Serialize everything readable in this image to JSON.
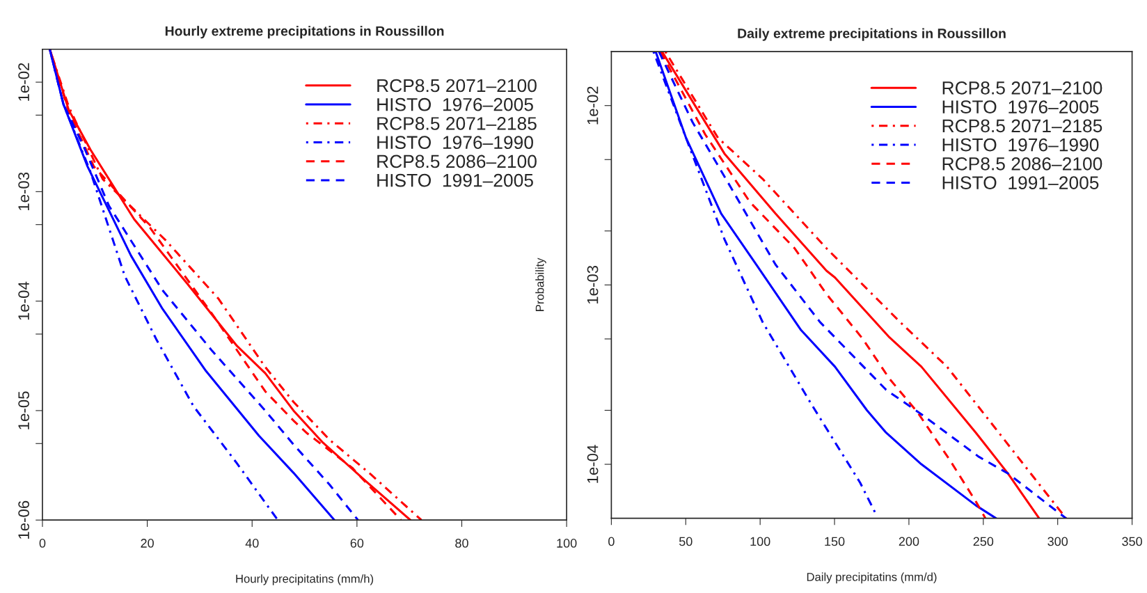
{
  "chart_data": [
    {
      "type": "line",
      "title": "Hourly extreme precipitations in Roussillon",
      "xlabel": "Hourly precipitatins (mm/h)",
      "xlim": [
        0,
        100
      ],
      "xticks": [
        0,
        20,
        40,
        60,
        80,
        100
      ],
      "ylim": [
        1e-06,
        0.02
      ],
      "log": "y",
      "grid": false,
      "legend": "top right",
      "yticks": [
        {
          "value": 0.01,
          "label": "1e-02"
        },
        {
          "value": 0.005,
          "label": null
        },
        {
          "value": 0.001,
          "label": "1e-03"
        },
        {
          "value": 0.0005,
          "label": null
        },
        {
          "value": 0.0001,
          "label": "1e-04"
        },
        {
          "value": 5e-05,
          "label": null
        },
        {
          "value": 1e-05,
          "label": "1e-05"
        },
        {
          "value": 5e-06,
          "label": null
        },
        {
          "value": 1e-06,
          "label": "1e-06"
        }
      ],
      "series": [
        {
          "name": "RCP8.5 2071–2100",
          "color": "#ff0000",
          "line_style": "solid",
          "x": [
            1.4,
            5,
            9.2,
            17.5,
            27.6,
            37.1,
            42.5,
            47.9,
            53.5,
            62,
            70.2
          ],
          "values": [
            0.02,
            0.0056,
            0.0024,
            0.00056,
            0.000145,
            3.9e-05,
            2.2e-05,
            1e-05,
            5.1e-06,
            2.2e-06,
            1e-06
          ]
        },
        {
          "name": "HISTO  1976–2005",
          "color": "#0000ff",
          "line_style": "solid",
          "x": [
            1.4,
            4,
            8.6,
            16.9,
            22.9,
            31.2,
            41.3,
            47.9,
            55.7
          ],
          "values": [
            0.02,
            0.0063,
            0.0017,
            0.00026,
            8.5e-05,
            2.3e-05,
            5.9e-06,
            2.7e-06,
            1e-06
          ]
        },
        {
          "name": "RCP8.5 2071–2185",
          "color": "#ff0000",
          "line_style": "dashdot",
          "x": [
            1.4,
            5,
            11.5,
            23.5,
            33.6,
            42.5,
            47.9,
            54.8,
            62.7,
            72.3
          ],
          "values": [
            0.02,
            0.006,
            0.0013,
            0.00036,
            0.000105,
            2.5e-05,
            1.2e-05,
            5.4e-06,
            2.6e-06,
            1e-06
          ]
        },
        {
          "name": "HISTO  1976–1990",
          "color": "#0000ff",
          "line_style": "dashdot",
          "x": [
            1.4,
            4,
            9.2,
            15.7,
            21.7,
            28.8,
            37.1,
            44.9
          ],
          "values": [
            0.02,
            0.0063,
            0.0015,
            0.00017,
            4.5e-05,
            1.1e-05,
            3.3e-06,
            1e-06
          ]
        },
        {
          "name": "RCP8.5 2086–2100",
          "color": "#ff0000",
          "line_style": "dashed",
          "x": [
            1.4,
            5,
            9.8,
            20.5,
            32.4,
            42.5,
            47.9,
            50.5,
            59.1,
            68.4
          ],
          "values": [
            0.02,
            0.0054,
            0.0017,
            0.00047,
            7.6e-05,
            1.5e-05,
            8.1e-06,
            6.2e-06,
            3e-06,
            1e-06
          ]
        },
        {
          "name": "HISTO  1991–2005",
          "color": "#0000ff",
          "line_style": "dashed",
          "x": [
            1.4,
            4,
            8,
            12.7,
            22.9,
            32.4,
            42.5,
            47.9,
            54.8,
            60.2
          ],
          "values": [
            0.02,
            0.0063,
            0.0025,
            0.00074,
            0.000126,
            3.5e-05,
            1e-05,
            4.9e-06,
            2.1e-06,
            1e-06
          ]
        }
      ]
    },
    {
      "type": "line",
      "title": "Daily extreme precipitations in Roussillon",
      "xlabel": "Daily precipitatins (mm/d)",
      "ylabel": "Probability",
      "xlim": [
        0,
        350
      ],
      "xticks": [
        0,
        50,
        100,
        150,
        200,
        250,
        300,
        350
      ],
      "ylim": [
        5e-05,
        0.02
      ],
      "log": "y",
      "grid": false,
      "legend": "top right",
      "yticks": [
        {
          "value": 0.01,
          "label": "1e-02"
        },
        {
          "value": 0.005,
          "label": null
        },
        {
          "value": 0.002,
          "label": null
        },
        {
          "value": 0.001,
          "label": "1e-03"
        },
        {
          "value": 0.0005,
          "label": null
        },
        {
          "value": 0.0002,
          "label": null
        },
        {
          "value": 0.0001,
          "label": "1e-04"
        }
      ],
      "series": [
        {
          "name": "RCP8.5 2071–2100",
          "color": "#ff0000",
          "line_style": "solid",
          "x": [
            34.1,
            76,
            110.3,
            144.6,
            150.3,
            186.9,
            208.4,
            245,
            266.5,
            287.5
          ],
          "values": [
            0.02,
            0.0054,
            0.0025,
            0.0012,
            0.0011,
            0.00051,
            0.00035,
            0.00015,
            8.9e-05,
            5e-05
          ]
        },
        {
          "name": "HISTO  1976–2005",
          "color": "#0000ff",
          "line_style": "solid",
          "x": [
            29.8,
            50.2,
            73.8,
            97.4,
            127.5,
            150.3,
            171.8,
            184.7,
            208.4,
            245,
            258.5
          ],
          "values": [
            0.02,
            0.0066,
            0.0025,
            0.0013,
            0.00056,
            0.00035,
            0.0002,
            0.00015,
            0.0001,
            5.9e-05,
            5e-05
          ]
        },
        {
          "name": "RCP8.5 2071–2185",
          "color": "#ff0000",
          "line_style": "dashdot",
          "x": [
            36.3,
            71.7,
            101.7,
            144.6,
            193.3,
            225.6,
            257.8,
            283.7,
            305.6
          ],
          "values": [
            0.02,
            0.0066,
            0.0039,
            0.0016,
            0.00063,
            0.00035,
            0.00016,
            8.5e-05,
            5e-05
          ]
        },
        {
          "name": "HISTO  1976–1990",
          "color": "#0000ff",
          "line_style": "dashdot",
          "x": [
            28.3,
            43.8,
            76,
            101.7,
            133.9,
            167.2,
            177.2
          ],
          "values": [
            0.02,
            0.0091,
            0.0018,
            0.00062,
            0.00022,
            7.9e-05,
            5.4e-05
          ]
        },
        {
          "name": "RCP8.5 2086–2100",
          "color": "#ff0000",
          "line_style": "dashed",
          "x": [
            33,
            63.1,
            93.1,
            123.2,
            144.6,
            169,
            186.9,
            205.8,
            227.7,
            245,
            251.4
          ],
          "values": [
            0.02,
            0.0069,
            0.0029,
            0.0016,
            0.00089,
            0.0005,
            0.0003,
            0.000195,
            0.000105,
            6.2e-05,
            5e-05
          ]
        },
        {
          "name": "HISTO  1991–2005",
          "color": "#0000ff",
          "line_style": "dashed",
          "x": [
            32,
            54.5,
            80.3,
            110.3,
            140.3,
            150.3,
            184.7,
            208.4,
            247.1,
            266.5,
            305.6
          ],
          "values": [
            0.02,
            0.0081,
            0.0035,
            0.0013,
            0.00062,
            0.00051,
            0.00026,
            0.00019,
            0.00011,
            8.9e-05,
            5e-05
          ]
        }
      ]
    }
  ]
}
